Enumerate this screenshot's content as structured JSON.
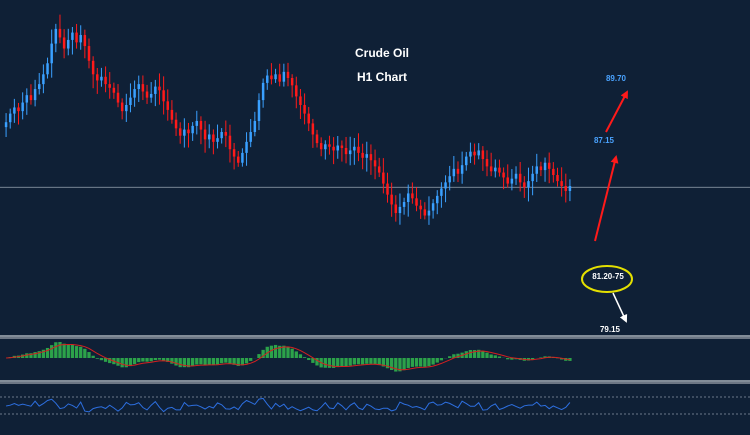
{
  "chart_data": {
    "type": "candlestick",
    "title": "Crude Oil",
    "subtitle": "H1 Chart",
    "colors": {
      "background": "#0f2036",
      "bull": "#3aa0ff",
      "bear": "#ff1a1a",
      "signal_line": "#d42020",
      "histogram": "#2ca24a",
      "oscillator_line": "#2d6fe0",
      "separator": "#c8ccd2",
      "up_arrow": "#ff1a1a",
      "down_arrow": "#ffffff",
      "ellipse": "#e4e000",
      "upper_target_text": "#4aa3ff",
      "support_text": "#ffffff"
    },
    "close_series": [
      89.2,
      89.9,
      90.4,
      90.1,
      90.8,
      91.4,
      91.0,
      91.9,
      92.3,
      93.1,
      94.0,
      95.6,
      96.8,
      96.1,
      95.2,
      95.9,
      96.5,
      95.7,
      96.3,
      95.4,
      94.2,
      93.1,
      92.6,
      92.9,
      92.3,
      92.0,
      91.6,
      90.8,
      90.1,
      90.6,
      91.2,
      91.9,
      92.3,
      91.7,
      91.2,
      91.5,
      92.1,
      91.8,
      90.9,
      90.2,
      89.4,
      88.7,
      88.1,
      88.6,
      88.3,
      88.9,
      89.3,
      88.6,
      87.8,
      88.2,
      87.6,
      87.9,
      88.4,
      88.1,
      87.0,
      86.4,
      85.9,
      86.7,
      87.6,
      88.4,
      89.3,
      91.0,
      92.4,
      93.0,
      92.7,
      93.1,
      92.5,
      93.3,
      92.8,
      92.2,
      91.3,
      90.6,
      89.9,
      89.1,
      88.2,
      87.5,
      87.0,
      87.4,
      87.2,
      86.9,
      87.3,
      87.1,
      86.6,
      86.9,
      87.2,
      86.7,
      86.3,
      86.6,
      86.1,
      85.6,
      85.1,
      84.2,
      83.3,
      82.5,
      81.8,
      82.3,
      82.7,
      83.4,
      83.0,
      82.4,
      82.1,
      81.6,
      82.0,
      82.6,
      83.2,
      83.8,
      84.3,
      84.8,
      85.4,
      85.0,
      85.7,
      86.4,
      86.8,
      86.5,
      86.9,
      86.2,
      85.6,
      85.2,
      85.5,
      85.1,
      84.7,
      84.2,
      84.6,
      85.0,
      84.3,
      83.9,
      84.4,
      85.0,
      85.6,
      85.3,
      85.9,
      85.4,
      84.9,
      84.4,
      84.0,
      83.6,
      84.0
    ],
    "levels": [
      {
        "label": "89.70",
        "kind": "target"
      },
      {
        "label": "87.15",
        "kind": "target"
      },
      {
        "label": "81.20-75",
        "kind": "support",
        "highlighted": true
      },
      {
        "label": "79.15",
        "kind": "support"
      }
    ],
    "reference_line": 83.9,
    "price_range": [
      77.0,
      98.5
    ],
    "indicators": [
      {
        "type": "histogram",
        "name": "",
        "with_signal_line": true
      },
      {
        "type": "oscillator",
        "name": "",
        "dotted_levels": 2
      }
    ],
    "legend": "none",
    "grid": false
  }
}
